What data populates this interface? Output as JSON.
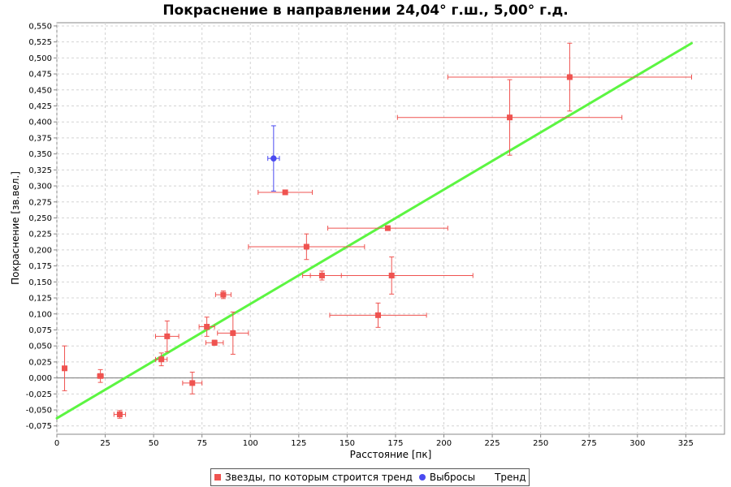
{
  "chart_data": {
    "type": "scatter",
    "title": "Покраснение в направлении 24,04° г.ш., 5,00° г.д.",
    "xlabel": "Расстояние [пк]",
    "ylabel": "Покраснение [зв.вел.]",
    "xlim": [
      0,
      345
    ],
    "ylim": [
      -0.088,
      0.555
    ],
    "xticks": [
      "0",
      "25",
      "50",
      "75",
      "100",
      "125",
      "150",
      "175",
      "200",
      "225",
      "250",
      "275",
      "300",
      "325"
    ],
    "yticks": [
      "-0,075",
      "-0,050",
      "-0,025",
      "0,000",
      "0,025",
      "0,050",
      "0,075",
      "0,100",
      "0,125",
      "0,150",
      "0,175",
      "0,200",
      "0,225",
      "0,250",
      "0,275",
      "0,300",
      "0,325",
      "0,350",
      "0,375",
      "0,400",
      "0,425",
      "0,450",
      "0,475",
      "0,500",
      "0,525",
      "0,550"
    ],
    "grid": true,
    "zero_line": true,
    "legend_placement": "bottom",
    "colors": {
      "stars": "#ef5350",
      "outliers": "#4a4af0",
      "trend": "#5cf542"
    },
    "series": [
      {
        "name": "Звезды, по которым строится тренд",
        "marker": "square",
        "points": [
          {
            "x": 4,
            "y": 0.015,
            "xerr": 0,
            "yerr": 0.035
          },
          {
            "x": 22.5,
            "y": 0.003,
            "xerr": 1.5,
            "yerr": 0.01
          },
          {
            "x": 32.5,
            "y": -0.057,
            "xerr": 3,
            "yerr": 0.006
          },
          {
            "x": 54,
            "y": 0.029,
            "xerr": 3,
            "yerr": 0.01
          },
          {
            "x": 57,
            "y": 0.065,
            "xerr": 6,
            "yerr": 0.024
          },
          {
            "x": 70,
            "y": -0.008,
            "xerr": 5,
            "yerr": 0.017
          },
          {
            "x": 77.5,
            "y": 0.08,
            "xerr": 4,
            "yerr": 0.015
          },
          {
            "x": 81.5,
            "y": 0.055,
            "xerr": 4.5,
            "yerr": 0.004
          },
          {
            "x": 86,
            "y": 0.13,
            "xerr": 4,
            "yerr": 0.006
          },
          {
            "x": 91,
            "y": 0.07,
            "xerr": 8,
            "yerr": 0.033
          },
          {
            "x": 118,
            "y": 0.29,
            "xerr": 14,
            "yerr": 0.002
          },
          {
            "x": 129,
            "y": 0.205,
            "xerr": 30,
            "yerr": 0.02
          },
          {
            "x": 137,
            "y": 0.16,
            "xerr": 10,
            "yerr": 0.007
          },
          {
            "x": 166,
            "y": 0.098,
            "xerr": 25,
            "yerr": 0.019
          },
          {
            "x": 171,
            "y": 0.234,
            "xerr": 31,
            "yerr": 0.003
          },
          {
            "x": 173,
            "y": 0.16,
            "xerr": 42,
            "yerr": 0.029
          },
          {
            "x": 234,
            "y": 0.407,
            "xerr": 58,
            "yerr": 0.059
          },
          {
            "x": 265,
            "y": 0.47,
            "xerr": 63,
            "yerr": 0.053
          }
        ]
      },
      {
        "name": "Выбросы",
        "marker": "circle",
        "points": [
          {
            "x": 112,
            "y": 0.343,
            "xerr": 3,
            "yerr": 0.051
          }
        ]
      },
      {
        "name": "Тренд",
        "marker": "line",
        "points": [
          {
            "x": 0,
            "y": -0.063
          },
          {
            "x": 328,
            "y": 0.523
          }
        ]
      }
    ]
  }
}
